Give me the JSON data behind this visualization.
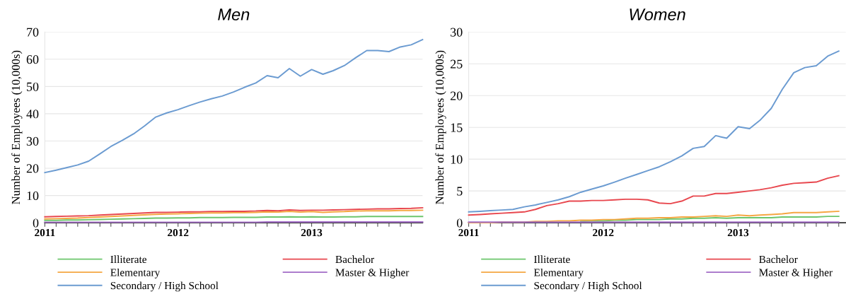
{
  "chart_data": [
    {
      "type": "line",
      "title": "Men",
      "ylabel": "Number of Employees (10,000s)",
      "legend": "bottom",
      "grid": "y",
      "x": [
        "2011-01",
        "2011-02",
        "2011-03",
        "2011-04",
        "2011-05",
        "2011-06",
        "2011-07",
        "2011-08",
        "2011-09",
        "2011-10",
        "2011-11",
        "2011-12",
        "2012-01",
        "2012-02",
        "2012-03",
        "2012-04",
        "2012-05",
        "2012-06",
        "2012-07",
        "2012-08",
        "2012-09",
        "2012-10",
        "2012-11",
        "2012-12",
        "2013-01",
        "2013-02",
        "2013-03",
        "2013-04",
        "2013-05",
        "2013-06",
        "2013-07",
        "2013-08",
        "2013-09",
        "2013-10",
        "2013-11"
      ],
      "xlim": [
        "2011-01",
        "2013-11"
      ],
      "xticks": [
        {
          "value": "2011-01",
          "label": "2011"
        },
        {
          "value": "2011-02",
          "label": null
        },
        {
          "value": "2011-03",
          "label": null
        },
        {
          "value": "2011-04",
          "label": null
        },
        {
          "value": "2011-05",
          "label": null
        },
        {
          "value": "2011-06",
          "label": null
        },
        {
          "value": "2011-07",
          "label": null
        },
        {
          "value": "2011-08",
          "label": null
        },
        {
          "value": "2011-09",
          "label": null
        },
        {
          "value": "2011-10",
          "label": null
        },
        {
          "value": "2011-11",
          "label": null
        },
        {
          "value": "2011-12",
          "label": null
        },
        {
          "value": "2012-01",
          "label": "2012"
        },
        {
          "value": "2012-02",
          "label": null
        },
        {
          "value": "2012-03",
          "label": null
        },
        {
          "value": "2012-04",
          "label": null
        },
        {
          "value": "2012-05",
          "label": null
        },
        {
          "value": "2012-06",
          "label": null
        },
        {
          "value": "2012-07",
          "label": null
        },
        {
          "value": "2012-08",
          "label": null
        },
        {
          "value": "2012-09",
          "label": null
        },
        {
          "value": "2012-10",
          "label": null
        },
        {
          "value": "2012-11",
          "label": null
        },
        {
          "value": "2012-12",
          "label": null
        },
        {
          "value": "2013-01",
          "label": "2013"
        },
        {
          "value": "2013-02",
          "label": null
        },
        {
          "value": "2013-03",
          "label": null
        },
        {
          "value": "2013-04",
          "label": null
        },
        {
          "value": "2013-05",
          "label": null
        },
        {
          "value": "2013-06",
          "label": null
        },
        {
          "value": "2013-07",
          "label": null
        },
        {
          "value": "2013-08",
          "label": null
        },
        {
          "value": "2013-09",
          "label": null
        },
        {
          "value": "2013-10",
          "label": null
        }
      ],
      "ylim": [
        0,
        70
      ],
      "yticks": [
        0,
        10,
        20,
        30,
        40,
        50,
        60,
        70
      ],
      "series": [
        {
          "name": "Illiterate",
          "color": "#6cc66c",
          "values": [
            0.9,
            0.9,
            1.0,
            1.0,
            1.1,
            1.2,
            1.3,
            1.4,
            1.5,
            1.6,
            1.7,
            1.7,
            1.8,
            1.8,
            1.9,
            1.9,
            1.9,
            2.0,
            2.0,
            2.0,
            2.1,
            2.1,
            2.2,
            2.1,
            2.2,
            2.1,
            2.1,
            2.2,
            2.2,
            2.3,
            2.3,
            2.3,
            2.3,
            2.3,
            2.3
          ]
        },
        {
          "name": "Bachelor",
          "color": "#e8474e",
          "values": [
            2.2,
            2.3,
            2.4,
            2.5,
            2.6,
            2.8,
            3.0,
            3.2,
            3.4,
            3.6,
            3.8,
            3.8,
            3.9,
            4.0,
            4.0,
            4.1,
            4.1,
            4.2,
            4.2,
            4.3,
            4.5,
            4.4,
            4.7,
            4.5,
            4.6,
            4.6,
            4.7,
            4.8,
            4.9,
            5.0,
            5.1,
            5.1,
            5.2,
            5.3,
            5.5
          ]
        },
        {
          "name": "Elementary",
          "color": "#f5a742",
          "values": [
            1.4,
            1.5,
            1.6,
            1.7,
            1.9,
            2.1,
            2.3,
            2.5,
            2.7,
            2.9,
            3.1,
            3.2,
            3.3,
            3.4,
            3.5,
            3.6,
            3.6,
            3.7,
            3.7,
            3.8,
            4.0,
            3.9,
            4.2,
            3.9,
            4.1,
            3.8,
            4.0,
            4.1,
            4.3,
            4.4,
            4.4,
            4.4,
            4.5,
            4.5,
            4.6
          ]
        },
        {
          "name": "Master & Higher",
          "color": "#a26cc6",
          "values": [
            0.2,
            0.2,
            0.2,
            0.2,
            0.2,
            0.2,
            0.2,
            0.2,
            0.2,
            0.2,
            0.2,
            0.2,
            0.2,
            0.2,
            0.2,
            0.2,
            0.2,
            0.2,
            0.2,
            0.2,
            0.3,
            0.3,
            0.3,
            0.3,
            0.3,
            0.3,
            0.3,
            0.3,
            0.3,
            0.3,
            0.3,
            0.3,
            0.3,
            0.3,
            0.3
          ]
        },
        {
          "name": "Secondary / High School",
          "color": "#6b9bd1",
          "values": [
            18.4,
            19.3,
            20.2,
            21.2,
            22.6,
            25.3,
            28.0,
            30.2,
            32.6,
            35.5,
            38.8,
            40.3,
            41.5,
            43.0,
            44.3,
            45.5,
            46.5,
            48.0,
            49.7,
            51.3,
            54.0,
            53.2,
            56.6,
            53.8,
            56.2,
            54.5,
            55.8,
            57.7,
            60.5,
            63.2,
            63.2,
            62.8,
            64.5,
            65.3,
            67.2
          ]
        }
      ]
    },
    {
      "type": "line",
      "title": "Women",
      "ylabel": "Number of Employees (10,000s)",
      "legend": "bottom",
      "grid": "y",
      "x": [
        "2011-01",
        "2011-02",
        "2011-03",
        "2011-04",
        "2011-05",
        "2011-06",
        "2011-07",
        "2011-08",
        "2011-09",
        "2011-10",
        "2011-11",
        "2011-12",
        "2012-01",
        "2012-02",
        "2012-03",
        "2012-04",
        "2012-05",
        "2012-06",
        "2012-07",
        "2012-08",
        "2012-09",
        "2012-10",
        "2012-11",
        "2012-12",
        "2013-01",
        "2013-02",
        "2013-03",
        "2013-04",
        "2013-05",
        "2013-06",
        "2013-07",
        "2013-08",
        "2013-09",
        "2013-10"
      ],
      "xlim": [
        "2011-01",
        "2013-10-20"
      ],
      "xticks": [
        {
          "value": "2011-01",
          "label": "2011"
        },
        {
          "value": "2011-02",
          "label": null
        },
        {
          "value": "2011-03",
          "label": null
        },
        {
          "value": "2011-04",
          "label": null
        },
        {
          "value": "2011-05",
          "label": null
        },
        {
          "value": "2011-06",
          "label": null
        },
        {
          "value": "2011-07",
          "label": null
        },
        {
          "value": "2011-08",
          "label": null
        },
        {
          "value": "2011-09",
          "label": null
        },
        {
          "value": "2011-10",
          "label": null
        },
        {
          "value": "2011-11",
          "label": null
        },
        {
          "value": "2011-12",
          "label": null
        },
        {
          "value": "2012-01",
          "label": "2012"
        },
        {
          "value": "2012-02",
          "label": null
        },
        {
          "value": "2012-03",
          "label": null
        },
        {
          "value": "2012-04",
          "label": null
        },
        {
          "value": "2012-05",
          "label": null
        },
        {
          "value": "2012-06",
          "label": null
        },
        {
          "value": "2012-07",
          "label": null
        },
        {
          "value": "2012-08",
          "label": null
        },
        {
          "value": "2012-09",
          "label": null
        },
        {
          "value": "2012-10",
          "label": null
        },
        {
          "value": "2012-11",
          "label": null
        },
        {
          "value": "2012-12",
          "label": null
        },
        {
          "value": "2013-01",
          "label": "2013"
        },
        {
          "value": "2013-02",
          "label": null
        },
        {
          "value": "2013-03",
          "label": null
        },
        {
          "value": "2013-04",
          "label": null
        },
        {
          "value": "2013-05",
          "label": null
        },
        {
          "value": "2013-06",
          "label": null
        },
        {
          "value": "2013-07",
          "label": null
        },
        {
          "value": "2013-08",
          "label": null
        },
        {
          "value": "2013-09",
          "label": null
        },
        {
          "value": "2013-10",
          "label": null
        }
      ],
      "ylim": [
        0,
        30
      ],
      "yticks": [
        0,
        5,
        10,
        15,
        20,
        25,
        30
      ],
      "series": [
        {
          "name": "Illiterate",
          "color": "#6cc66c",
          "values": [
            null,
            null,
            null,
            null,
            null,
            null,
            null,
            null,
            null,
            null,
            0.2,
            0.3,
            0.3,
            0.4,
            0.4,
            0.5,
            0.5,
            0.5,
            0.6,
            0.6,
            0.7,
            0.7,
            0.8,
            0.7,
            0.8,
            0.8,
            0.8,
            0.8,
            0.9,
            0.9,
            0.9,
            0.9,
            1.0,
            1.0
          ]
        },
        {
          "name": "Bachelor",
          "color": "#e8474e",
          "values": [
            1.2,
            1.3,
            1.4,
            1.5,
            1.6,
            1.7,
            2.1,
            2.7,
            3.0,
            3.4,
            3.4,
            3.5,
            3.5,
            3.6,
            3.7,
            3.7,
            3.6,
            3.1,
            3.0,
            3.4,
            4.2,
            4.2,
            4.6,
            4.6,
            4.8,
            5.0,
            5.2,
            5.5,
            5.9,
            6.2,
            6.3,
            6.4,
            7.0,
            7.4
          ]
        },
        {
          "name": "Elementary",
          "color": "#f5a742",
          "values": [
            0.0,
            0.0,
            0.0,
            0.1,
            0.1,
            0.1,
            0.2,
            0.2,
            0.3,
            0.3,
            0.4,
            0.4,
            0.5,
            0.5,
            0.6,
            0.7,
            0.7,
            0.8,
            0.8,
            0.9,
            0.9,
            1.0,
            1.1,
            1.0,
            1.2,
            1.1,
            1.2,
            1.3,
            1.4,
            1.6,
            1.6,
            1.6,
            1.7,
            1.8
          ]
        },
        {
          "name": "Master & Higher",
          "color": "#a26cc6",
          "values": [
            0.1,
            0.1,
            0.1,
            0.1,
            0.1,
            0.1,
            0.1,
            0.1,
            0.1,
            0.1,
            0.1,
            0.1,
            0.1,
            0.1,
            0.1,
            0.1,
            0.1,
            0.1,
            0.1,
            0.1,
            0.1,
            0.1,
            0.1,
            0.1,
            0.1,
            0.1,
            0.1,
            0.1,
            0.1,
            0.1,
            0.1,
            0.1,
            0.1,
            0.1
          ]
        },
        {
          "name": "Secondary / High School",
          "color": "#6b9bd1",
          "values": [
            1.7,
            1.8,
            1.9,
            2.0,
            2.1,
            2.5,
            2.8,
            3.2,
            3.6,
            4.1,
            4.8,
            5.3,
            5.8,
            6.4,
            7.0,
            7.6,
            8.2,
            8.8,
            9.6,
            10.5,
            11.7,
            12.0,
            13.7,
            13.3,
            15.1,
            14.8,
            16.1,
            18.0,
            21.0,
            23.6,
            24.4,
            24.7,
            26.2,
            27.0
          ]
        }
      ]
    }
  ]
}
